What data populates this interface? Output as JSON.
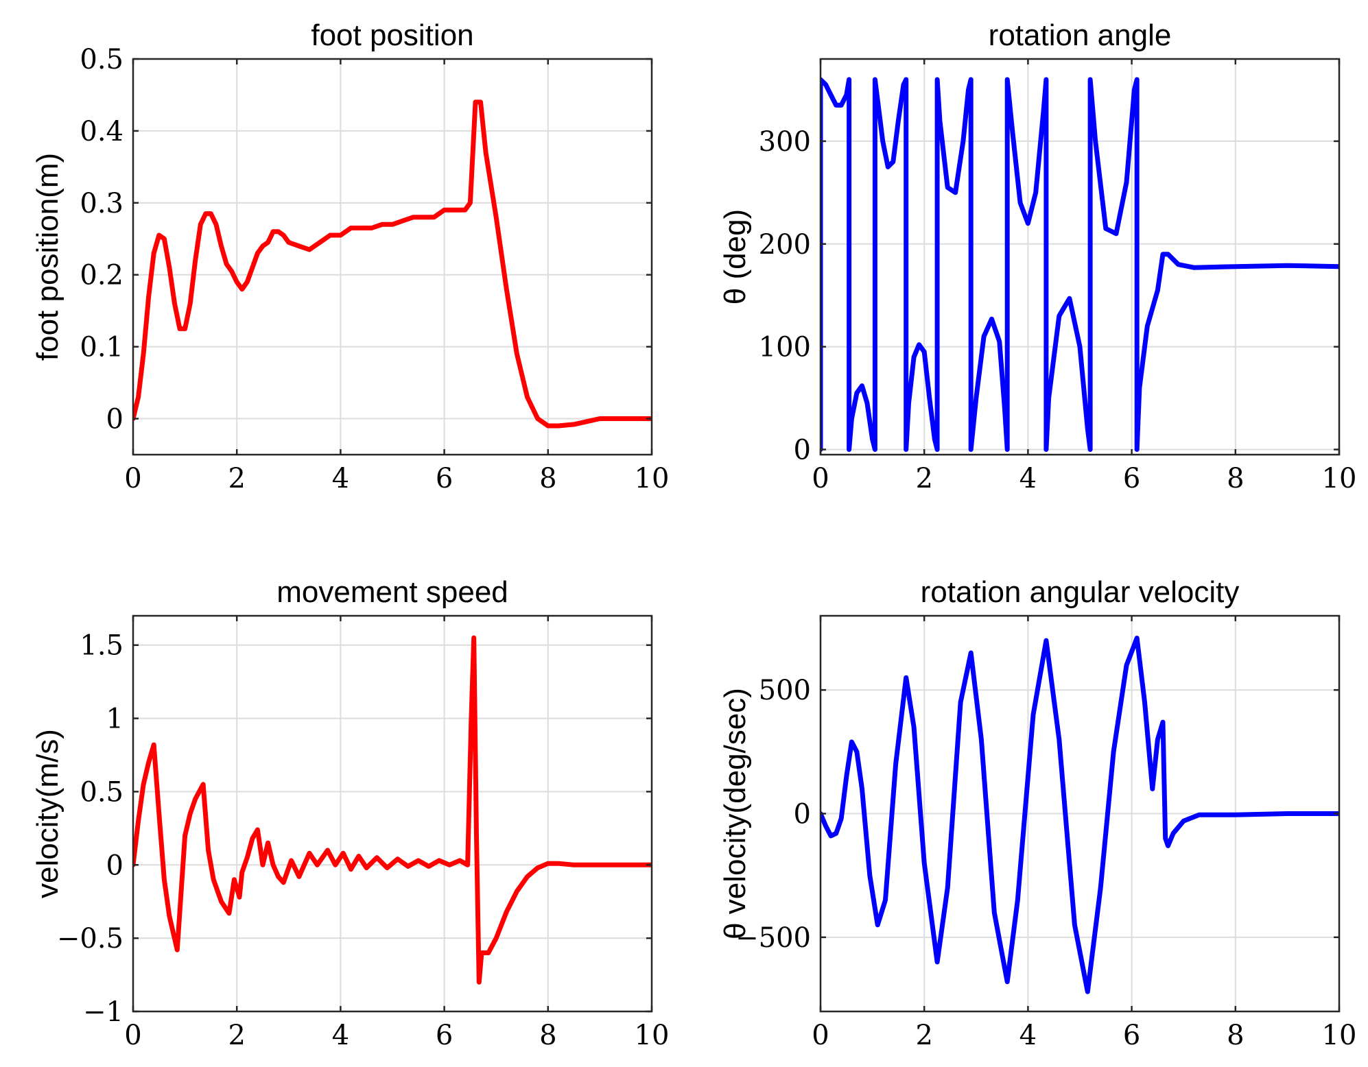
{
  "chart_data": [
    {
      "type": "line",
      "title": "foot position",
      "xlabel": "",
      "ylabel": "foot position(m)",
      "xlim": [
        0,
        10
      ],
      "ylim": [
        -0.05,
        0.5
      ],
      "xticks": [
        0,
        2,
        4,
        6,
        8,
        10
      ],
      "yticks": [
        0,
        0.1,
        0.2,
        0.3,
        0.4,
        0.5
      ],
      "ytick_labels": [
        "0",
        "0.1",
        "0.2",
        "0.3",
        "0.4",
        "0.5"
      ],
      "grid": true,
      "color": "#ff0000",
      "series": [
        {
          "x": [
            0,
            0.1,
            0.2,
            0.3,
            0.4,
            0.5,
            0.6,
            0.7,
            0.8,
            0.9,
            1.0,
            1.1,
            1.2,
            1.3,
            1.4,
            1.5,
            1.6,
            1.7,
            1.8,
            1.9,
            2.0,
            2.1,
            2.2,
            2.3,
            2.4,
            2.5,
            2.6,
            2.7,
            2.8,
            2.9,
            3.0,
            3.2,
            3.4,
            3.6,
            3.8,
            4.0,
            4.2,
            4.4,
            4.6,
            4.8,
            5.0,
            5.2,
            5.4,
            5.6,
            5.8,
            6.0,
            6.2,
            6.4,
            6.5,
            6.6,
            6.7,
            6.8,
            7.0,
            7.2,
            7.4,
            7.6,
            7.8,
            8.0,
            8.2,
            8.5,
            9.0,
            9.5,
            10.0
          ],
          "y": [
            0,
            0.03,
            0.09,
            0.17,
            0.23,
            0.255,
            0.25,
            0.21,
            0.16,
            0.125,
            0.125,
            0.16,
            0.22,
            0.27,
            0.285,
            0.285,
            0.27,
            0.24,
            0.215,
            0.205,
            0.19,
            0.18,
            0.19,
            0.21,
            0.23,
            0.24,
            0.245,
            0.26,
            0.26,
            0.255,
            0.245,
            0.24,
            0.235,
            0.245,
            0.255,
            0.255,
            0.265,
            0.265,
            0.265,
            0.27,
            0.27,
            0.275,
            0.28,
            0.28,
            0.28,
            0.29,
            0.29,
            0.29,
            0.3,
            0.44,
            0.44,
            0.37,
            0.28,
            0.18,
            0.09,
            0.03,
            0.0,
            -0.01,
            -0.01,
            -0.008,
            0.0,
            0.0,
            0.0
          ]
        }
      ]
    },
    {
      "type": "line",
      "title": "rotation angle",
      "xlabel": "",
      "ylabel": "θ (deg)",
      "xlim": [
        0,
        10
      ],
      "ylim": [
        -5,
        380
      ],
      "xticks": [
        0,
        2,
        4,
        6,
        8,
        10
      ],
      "yticks": [
        0,
        100,
        200,
        300
      ],
      "ytick_labels": [
        "0",
        "100",
        "200",
        "300"
      ],
      "grid": true,
      "color": "#0000ff",
      "series": [
        {
          "x": [
            0,
            0.0,
            0.1,
            0.2,
            0.3,
            0.4,
            0.5,
            0.55,
            0.55,
            0.6,
            0.7,
            0.8,
            0.9,
            1.0,
            1.05,
            1.05,
            1.1,
            1.2,
            1.3,
            1.4,
            1.5,
            1.6,
            1.65,
            1.65,
            1.7,
            1.8,
            1.9,
            2.0,
            2.1,
            2.2,
            2.25,
            2.25,
            2.3,
            2.45,
            2.6,
            2.75,
            2.85,
            2.9,
            2.9,
            3.0,
            3.15,
            3.3,
            3.45,
            3.55,
            3.6,
            3.6,
            3.7,
            3.85,
            4.0,
            4.15,
            4.3,
            4.35,
            4.35,
            4.4,
            4.6,
            4.8,
            5.0,
            5.15,
            5.2,
            5.2,
            5.3,
            5.5,
            5.7,
            5.9,
            6.05,
            6.1,
            6.1,
            6.15,
            6.3,
            6.5,
            6.6,
            6.7,
            6.9,
            7.2,
            8.0,
            9.0,
            10.0
          ],
          "y": [
            0,
            360,
            355,
            345,
            335,
            335,
            345,
            360,
            0,
            30,
            55,
            62,
            45,
            10,
            0,
            360,
            340,
            300,
            275,
            280,
            320,
            355,
            360,
            0,
            45,
            90,
            102,
            95,
            50,
            10,
            0,
            360,
            320,
            255,
            250,
            300,
            350,
            360,
            0,
            50,
            110,
            127,
            105,
            40,
            0,
            360,
            310,
            240,
            220,
            250,
            330,
            360,
            0,
            50,
            130,
            147,
            100,
            20,
            0,
            360,
            300,
            215,
            210,
            260,
            350,
            360,
            0,
            60,
            120,
            155,
            190,
            190,
            180,
            177,
            178,
            179,
            178
          ]
        }
      ]
    },
    {
      "type": "line",
      "title": "movement speed",
      "xlabel": "",
      "ylabel": "velocity(m/s)",
      "xlim": [
        0,
        10
      ],
      "ylim": [
        -1,
        1.7
      ],
      "xticks": [
        0,
        2,
        4,
        6,
        8,
        10
      ],
      "yticks": [
        -1,
        -0.5,
        0,
        0.5,
        1,
        1.5
      ],
      "ytick_labels": [
        "−1",
        "−0.5",
        "0",
        "0.5",
        "1",
        "1.5"
      ],
      "grid": true,
      "color": "#ff0000",
      "series": [
        {
          "x": [
            0,
            0.1,
            0.2,
            0.3,
            0.4,
            0.5,
            0.6,
            0.7,
            0.85,
            1.0,
            1.1,
            1.2,
            1.35,
            1.45,
            1.55,
            1.7,
            1.85,
            1.95,
            2.05,
            2.1,
            2.2,
            2.3,
            2.4,
            2.5,
            2.6,
            2.7,
            2.8,
            2.9,
            3.05,
            3.2,
            3.4,
            3.55,
            3.75,
            3.9,
            4.05,
            4.2,
            4.35,
            4.5,
            4.7,
            4.9,
            5.1,
            5.3,
            5.5,
            5.7,
            5.9,
            6.1,
            6.3,
            6.45,
            6.52,
            6.57,
            6.62,
            6.67,
            6.72,
            6.85,
            7.0,
            7.2,
            7.4,
            7.6,
            7.8,
            8.0,
            8.2,
            8.5,
            9.0,
            10.0
          ],
          "y": [
            0,
            0.3,
            0.55,
            0.7,
            0.82,
            0.35,
            -0.1,
            -0.35,
            -0.58,
            0.2,
            0.35,
            0.45,
            0.55,
            0.1,
            -0.1,
            -0.25,
            -0.33,
            -0.1,
            -0.22,
            -0.05,
            0.05,
            0.18,
            0.24,
            0.0,
            0.15,
            0.0,
            -0.08,
            -0.12,
            0.03,
            -0.08,
            0.08,
            0.0,
            0.1,
            0.0,
            0.08,
            -0.03,
            0.06,
            -0.02,
            0.05,
            -0.02,
            0.04,
            -0.01,
            0.03,
            -0.01,
            0.03,
            0.0,
            0.03,
            0.0,
            1.0,
            1.55,
            0.2,
            -0.8,
            -0.6,
            -0.6,
            -0.5,
            -0.32,
            -0.18,
            -0.08,
            -0.02,
            0.01,
            0.01,
            0.0,
            0.0,
            0.0
          ]
        }
      ]
    },
    {
      "type": "line",
      "title": "rotation angular velocity",
      "xlabel": "",
      "ylabel": "θ velocity(deg/sec)",
      "xlim": [
        0,
        10
      ],
      "ylim": [
        -800,
        800
      ],
      "xticks": [
        0,
        2,
        4,
        6,
        8,
        10
      ],
      "yticks": [
        -500,
        0,
        500
      ],
      "ytick_labels": [
        "−500",
        "0",
        "500"
      ],
      "grid": true,
      "color": "#0000ff",
      "series": [
        {
          "x": [
            0,
            0.1,
            0.2,
            0.3,
            0.4,
            0.5,
            0.6,
            0.7,
            0.8,
            0.95,
            1.1,
            1.25,
            1.45,
            1.65,
            1.8,
            2.0,
            2.25,
            2.45,
            2.7,
            2.9,
            3.1,
            3.35,
            3.6,
            3.8,
            4.1,
            4.35,
            4.6,
            4.9,
            5.15,
            5.4,
            5.65,
            5.9,
            6.1,
            6.25,
            6.4,
            6.5,
            6.6,
            6.65,
            6.7,
            6.8,
            7.0,
            7.3,
            8.0,
            9.0,
            10.0
          ],
          "y": [
            0,
            -50,
            -90,
            -80,
            -20,
            150,
            290,
            250,
            100,
            -250,
            -450,
            -350,
            200,
            550,
            350,
            -200,
            -600,
            -300,
            450,
            650,
            300,
            -400,
            -680,
            -350,
            400,
            700,
            300,
            -450,
            -720,
            -300,
            250,
            600,
            710,
            450,
            100,
            300,
            370,
            -100,
            -130,
            -80,
            -30,
            -5,
            -5,
            0,
            0
          ]
        }
      ]
    }
  ]
}
